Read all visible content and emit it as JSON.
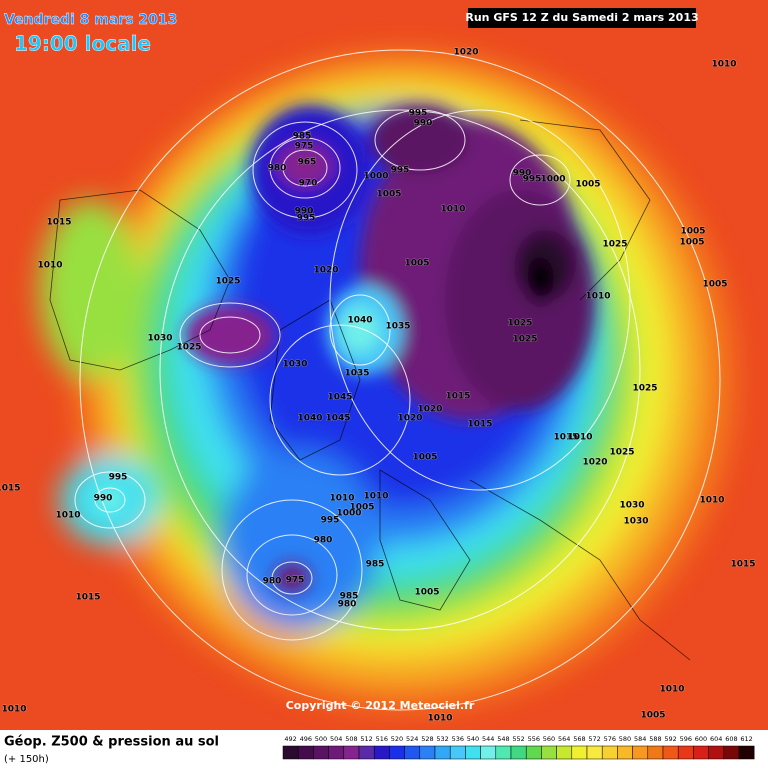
{
  "map": {
    "title_date": "Vendredi 8 mars 2013",
    "title_time": "19:00 locale",
    "run": "Run GFS 12 Z du Samedi 2 mars 2013",
    "copyright": "Copyright © 2012 Meteociel.fr",
    "isobar_labels": [
      "1020",
      "1010",
      "995",
      "990",
      "985",
      "975",
      "965",
      "980",
      "970",
      "995",
      "1000",
      "1005",
      "990",
      "995",
      "1010",
      "990",
      "995",
      "1000",
      "1005",
      "1025",
      "1005",
      "1005",
      "1010",
      "1015",
      "1005",
      "1020",
      "1010",
      "1005",
      "1025",
      "1040",
      "1035",
      "1030",
      "1025",
      "1025",
      "1025",
      "1030",
      "1035",
      "1045",
      "1025",
      "1015",
      "1020",
      "1015",
      "1045",
      "1040",
      "1020",
      "1015",
      "1010",
      "1020",
      "1025",
      "1005",
      "995",
      "990",
      "1015",
      "1010",
      "1030",
      "1030",
      "1010",
      "1010",
      "1010",
      "1005",
      "1000",
      "995",
      "980",
      "985",
      "980",
      "975",
      "985",
      "980",
      "1005",
      "1015",
      "1015",
      "1010",
      "1005",
      "1010",
      "1010"
    ]
  },
  "legend": {
    "title": "Géop. Z500 & pression au sol",
    "subtitle": "(+ 150h)",
    "ticks": [
      492,
      496,
      500,
      504,
      508,
      512,
      516,
      520,
      524,
      528,
      532,
      536,
      540,
      544,
      548,
      552,
      556,
      560,
      564,
      568,
      572,
      576,
      580,
      584,
      588,
      592,
      596,
      600,
      604,
      608,
      612
    ],
    "colors": [
      "#2a0a2e",
      "#440c4c",
      "#5a1262",
      "#6e1a78",
      "#86248e",
      "#5a2aa8",
      "#2818c8",
      "#1a30e8",
      "#1e58f0",
      "#2a80f4",
      "#30a8f6",
      "#48c8f8",
      "#40e0f0",
      "#70f0e8",
      "#50e8b0",
      "#40d880",
      "#60d850",
      "#98e040",
      "#c8e830",
      "#f0f030",
      "#f8e840",
      "#f8d030",
      "#f8b828",
      "#f89820",
      "#f07818",
      "#f05818",
      "#e83818",
      "#d82018",
      "#b01010",
      "#780808",
      "#200000"
    ]
  }
}
